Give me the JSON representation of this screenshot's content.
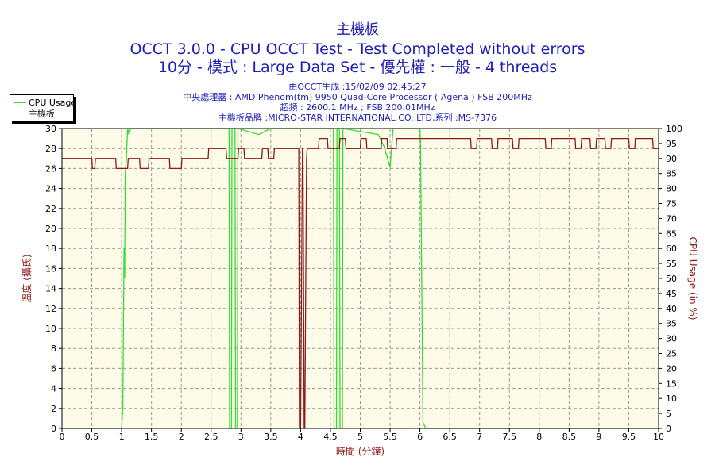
{
  "header": {
    "title": "主機板",
    "line2": "OCCT 3.0.0 - CPU OCCT Test - Test Completed without errors",
    "line3": "10分 - 模式 : Large Data Set - 優先權 : 一般 - 4 threads"
  },
  "info": {
    "generated": "由OCCT生成 :15/02/09 02:45:27",
    "cpu": "中央處理器 : AMD Phenom(tm) 9950 Quad-Core Processor ( Agena ) FSB 200MHz",
    "clock": "超頻 : 2600.1 MHz ; FSB 200.01MHz",
    "board": "主機板品牌 :MICRO-STAR INTERNATIONAL CO.,LTD,系列 :MS-7376"
  },
  "colors": {
    "plot_bg": "#fffbe9",
    "grid": "#999999",
    "cpu_series": "#33dd33",
    "temp_series": "#8b1a1a",
    "left_axis_label": "#8b1a1a",
    "right_axis_label": "#8b1a1a",
    "x_axis_label": "#8b1a1a"
  },
  "chart_data": {
    "type": "line",
    "xlabel": "時間 (分鐘)",
    "ylabel": "溫度 (攝氏)",
    "y2label": "CPU Usage (in %)",
    "xlim": [
      0,
      10
    ],
    "ylim": [
      0,
      30
    ],
    "y2lim": [
      0,
      100
    ],
    "xticks": [
      0,
      0.5,
      1,
      1.5,
      2,
      2.5,
      3,
      3.5,
      4,
      4.5,
      5,
      5.5,
      6,
      6.5,
      7,
      7.5,
      8,
      8.5,
      9,
      9.5,
      10
    ],
    "yticks": [
      0,
      2,
      4,
      6,
      8,
      10,
      12,
      14,
      16,
      18,
      20,
      22,
      24,
      26,
      28,
      30
    ],
    "y2ticks": [
      0,
      5,
      10,
      15,
      20,
      25,
      30,
      35,
      40,
      45,
      50,
      55,
      60,
      65,
      70,
      75,
      80,
      85,
      90,
      95,
      100
    ],
    "grid": true,
    "legend_position": "top-left",
    "series": [
      {
        "name": "CPU Usage",
        "axis": "right",
        "x": [
          0,
          1.0,
          1.02,
          1.04,
          1.05,
          1.06,
          1.08,
          1.1,
          1.12,
          1.15,
          2.8,
          2.81,
          2.84,
          2.85,
          2.9,
          2.91,
          2.94,
          2.95,
          3.3,
          3.5,
          4.55,
          4.56,
          4.6,
          4.61,
          4.65,
          4.66,
          4.7,
          4.71,
          5.3,
          5.4,
          5.5,
          5.55,
          6.0,
          6.01,
          6.05,
          6.1,
          10
        ],
        "y": [
          0,
          0,
          7,
          60,
          50,
          85,
          90,
          100,
          98,
          100,
          100,
          0,
          0,
          100,
          100,
          0,
          0,
          100,
          98,
          100,
          100,
          0,
          0,
          100,
          100,
          0,
          0,
          100,
          98,
          94,
          87,
          100,
          100,
          95,
          2,
          0,
          0
        ]
      },
      {
        "name": "主機板",
        "axis": "left",
        "x": [
          0,
          0.5,
          0.51,
          0.55,
          0.56,
          0.9,
          0.91,
          1.1,
          1.11,
          1.3,
          1.31,
          1.45,
          1.46,
          1.8,
          1.81,
          2.0,
          2.01,
          2.45,
          2.46,
          2.75,
          2.76,
          2.95,
          2.96,
          3.05,
          3.06,
          3.35,
          3.36,
          3.45,
          3.46,
          3.55,
          3.56,
          3.97,
          3.98,
          4.0,
          4.03,
          4.04,
          4.06,
          4.07,
          4.1,
          4.11,
          4.3,
          4.31,
          4.45,
          4.46,
          4.65,
          4.66,
          4.75,
          4.76,
          5.0,
          5.01,
          5.1,
          5.11,
          5.35,
          5.36,
          5.45,
          5.46,
          5.6,
          5.61,
          6.1,
          6.11,
          6.85,
          6.86,
          6.95,
          6.96,
          7.2,
          7.21,
          7.3,
          7.31,
          7.55,
          7.56,
          7.65,
          7.66,
          8.1,
          8.11,
          8.2,
          8.21,
          8.6,
          8.61,
          8.7,
          8.71,
          8.85,
          8.86,
          8.95,
          8.96,
          9.1,
          9.11,
          9.2,
          9.21,
          9.5,
          9.51,
          9.6,
          9.61,
          9.9,
          9.91,
          10
        ],
        "y": [
          27,
          27,
          26,
          26,
          27,
          27,
          26,
          26,
          27,
          27,
          26,
          26,
          27,
          27,
          26,
          26,
          27,
          27,
          28,
          28,
          27,
          27,
          28,
          28,
          27,
          27,
          28,
          28,
          27,
          27,
          28,
          28,
          0,
          0,
          28,
          28,
          0,
          0,
          27,
          28,
          28,
          29,
          29,
          28,
          28,
          29,
          29,
          28,
          28,
          29,
          29,
          28,
          28,
          29,
          29,
          28,
          28,
          29,
          29,
          29,
          29,
          28,
          28,
          29,
          29,
          28,
          28,
          29,
          29,
          28,
          28,
          29,
          29,
          28,
          28,
          29,
          29,
          28,
          28,
          29,
          29,
          28,
          28,
          29,
          29,
          28,
          28,
          29,
          29,
          28,
          28,
          29,
          29,
          28,
          28
        ]
      }
    ]
  }
}
